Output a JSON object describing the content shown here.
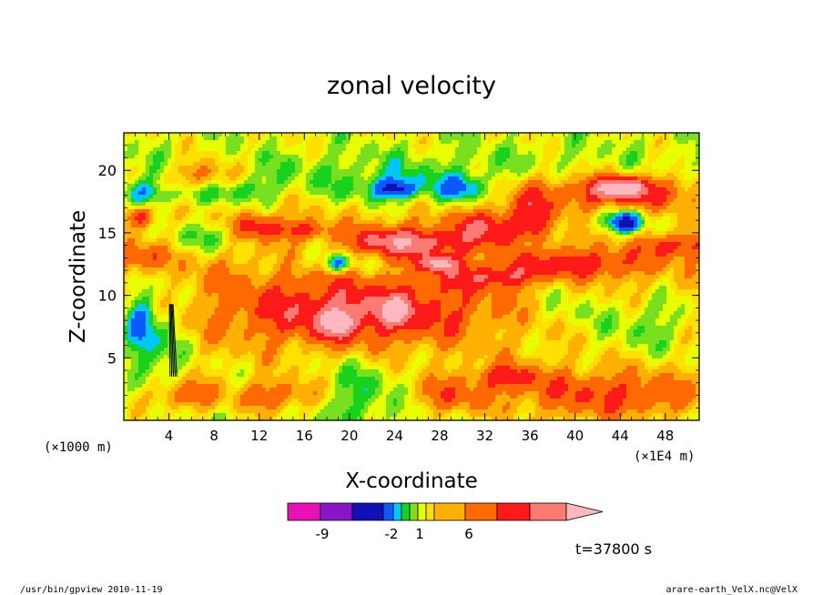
{
  "chart_data": {
    "type": "heatmap",
    "title": "zonal velocity",
    "xlabel": "X-coordinate",
    "ylabel": "Z-coordinate",
    "x_unit_left": "(×1000 m)",
    "x_unit_right": "(×1E4 m)",
    "xlim": [
      0,
      51
    ],
    "ylim": [
      0,
      23
    ],
    "x_ticks": [
      4,
      8,
      12,
      16,
      20,
      24,
      28,
      32,
      36,
      40,
      44,
      48
    ],
    "y_ticks": [
      5,
      10,
      15,
      20
    ],
    "time_label": "t=37800 s",
    "colorbar": {
      "bins": [
        {
          "color": "#e812b4"
        },
        {
          "color": "#8a14c8"
        },
        {
          "color": "#1010b4"
        },
        {
          "color": "#0a5aff"
        },
        {
          "color": "#00c8ff"
        },
        {
          "color": "#18d21e"
        },
        {
          "color": "#78e01e"
        },
        {
          "color": "#e8ff00"
        },
        {
          "color": "#ffe000"
        },
        {
          "color": "#ffb000"
        },
        {
          "color": "#ff6a00"
        },
        {
          "color": "#ff1a1a"
        },
        {
          "color": "#ff7a72"
        },
        {
          "color": "#ffb8c0"
        }
      ],
      "tick_labels": [
        "-9",
        "-2",
        "1",
        "6"
      ]
    },
    "blobs": [
      {
        "x": 25,
        "y": 11.5,
        "rx": 30,
        "ry": 7,
        "v": 2.5
      },
      {
        "x": 26,
        "y": 19.5,
        "rx": 30,
        "ry": 2.5,
        "v": -1.5
      },
      {
        "x": 15,
        "y": 22.0,
        "rx": 12,
        "ry": 1.5,
        "v": 0.2
      },
      {
        "x": 20,
        "y": 15,
        "rx": 9,
        "ry": 1.2,
        "v": -1.2
      },
      {
        "x": 23,
        "y": 14.5,
        "rx": 4,
        "ry": 1.2,
        "v": 3
      },
      {
        "x": 7,
        "y": 14.5,
        "rx": 4,
        "ry": 1.3,
        "v": -2
      },
      {
        "x": 19,
        "y": 12.8,
        "rx": 6,
        "ry": 1.4,
        "v": -2
      },
      {
        "x": 19,
        "y": 12.5,
        "rx": 1,
        "ry": 0.7,
        "v": -4
      },
      {
        "x": 26,
        "y": 14.2,
        "rx": 4.5,
        "ry": 1.1,
        "v": 3.5
      },
      {
        "x": 28,
        "y": 12.5,
        "rx": 1.5,
        "ry": 0.6,
        "v": 6
      },
      {
        "x": 12,
        "y": 15.5,
        "rx": 2,
        "ry": 1.0,
        "v": 4
      },
      {
        "x": 16,
        "y": 15.2,
        "rx": 2.5,
        "ry": 0.8,
        "v": 3.5
      },
      {
        "x": 17,
        "y": 11.5,
        "rx": 3,
        "ry": 0.8,
        "v": 0.5
      },
      {
        "x": 20,
        "y": 8.5,
        "rx": 10,
        "ry": 2.3,
        "v": 3.5
      },
      {
        "x": 19,
        "y": 7.8,
        "rx": 1.3,
        "ry": 1.0,
        "v": 5.5
      },
      {
        "x": 24,
        "y": 8.8,
        "rx": 1.2,
        "ry": 0.9,
        "v": 5.5
      },
      {
        "x": 3,
        "y": 7,
        "rx": 2.5,
        "ry": 5,
        "v": -2
      },
      {
        "x": 1.5,
        "y": 7.5,
        "rx": 1.2,
        "ry": 3,
        "v": -3
      },
      {
        "x": 1.5,
        "y": 13,
        "rx": 2.5,
        "ry": 1.2,
        "v": 3
      },
      {
        "x": 1.5,
        "y": 18.3,
        "rx": 1.5,
        "ry": 1.0,
        "v": -2.5
      },
      {
        "x": 1.5,
        "y": 16.3,
        "rx": 1.2,
        "ry": 0.8,
        "v": 4
      },
      {
        "x": 7,
        "y": 19.7,
        "rx": 3,
        "ry": 1.2,
        "v": 3
      },
      {
        "x": 6,
        "y": 18,
        "rx": 3,
        "ry": 0.8,
        "v": -1.5
      },
      {
        "x": 11,
        "y": 18.4,
        "rx": 2,
        "ry": 1.0,
        "v": -1.5
      },
      {
        "x": 24,
        "y": 18.5,
        "rx": 4,
        "ry": 1.2,
        "v": -2
      },
      {
        "x": 24,
        "y": 18.5,
        "rx": 1.5,
        "ry": 0.6,
        "v": -4
      },
      {
        "x": 30,
        "y": 18.5,
        "rx": 2,
        "ry": 1.0,
        "v": -3
      },
      {
        "x": 32,
        "y": 15.5,
        "rx": 3,
        "ry": 1.3,
        "v": 3.5
      },
      {
        "x": 36,
        "y": 16,
        "rx": 2,
        "ry": 3,
        "v": 3
      },
      {
        "x": 44,
        "y": 18.3,
        "rx": 8,
        "ry": 1.6,
        "v": 4.5
      },
      {
        "x": 44,
        "y": 18.6,
        "rx": 2,
        "ry": 0.7,
        "v": 6.5
      },
      {
        "x": 44,
        "y": 16,
        "rx": 3.5,
        "ry": 1.3,
        "v": -2.5
      },
      {
        "x": 44.5,
        "y": 15.8,
        "rx": 1.2,
        "ry": 0.7,
        "v": -5
      },
      {
        "x": 49,
        "y": 14,
        "rx": 3,
        "ry": 1.0,
        "v": 3.5
      },
      {
        "x": 41,
        "y": 12.5,
        "rx": 5,
        "ry": 1.1,
        "v": 3
      },
      {
        "x": 46,
        "y": 8,
        "rx": 5,
        "ry": 2.5,
        "v": -2
      },
      {
        "x": 39,
        "y": 9.5,
        "rx": 3,
        "ry": 2.5,
        "v": -1.8
      },
      {
        "x": 36,
        "y": 14,
        "rx": 1.2,
        "ry": 1.0,
        "v": -3
      },
      {
        "x": 33,
        "y": 11.5,
        "rx": 4,
        "ry": 0.8,
        "v": 3
      },
      {
        "x": 34,
        "y": 9,
        "rx": 2.5,
        "ry": 2.5,
        "v": -0.5
      },
      {
        "x": 43,
        "y": 2,
        "rx": 9,
        "ry": 2,
        "v": 3.5
      },
      {
        "x": 21,
        "y": 2,
        "rx": 5,
        "ry": 2.3,
        "v": -2
      },
      {
        "x": 21,
        "y": 4.5,
        "rx": 3,
        "ry": 1.2,
        "v": -0.5
      },
      {
        "x": 14,
        "y": 2,
        "rx": 4,
        "ry": 1.3,
        "v": 3
      },
      {
        "x": 28.5,
        "y": 2,
        "rx": 4,
        "ry": 1.5,
        "v": 2.5
      },
      {
        "x": 5,
        "y": 2,
        "rx": 3,
        "ry": 1.3,
        "v": 3
      },
      {
        "x": 34,
        "y": 3.5,
        "rx": 3,
        "ry": 1.0,
        "v": 3
      }
    ]
  },
  "footer": {
    "program": "/usr/bin/gpview   2010-11-19",
    "source": "arare-earth_VelX.nc@VelX"
  }
}
